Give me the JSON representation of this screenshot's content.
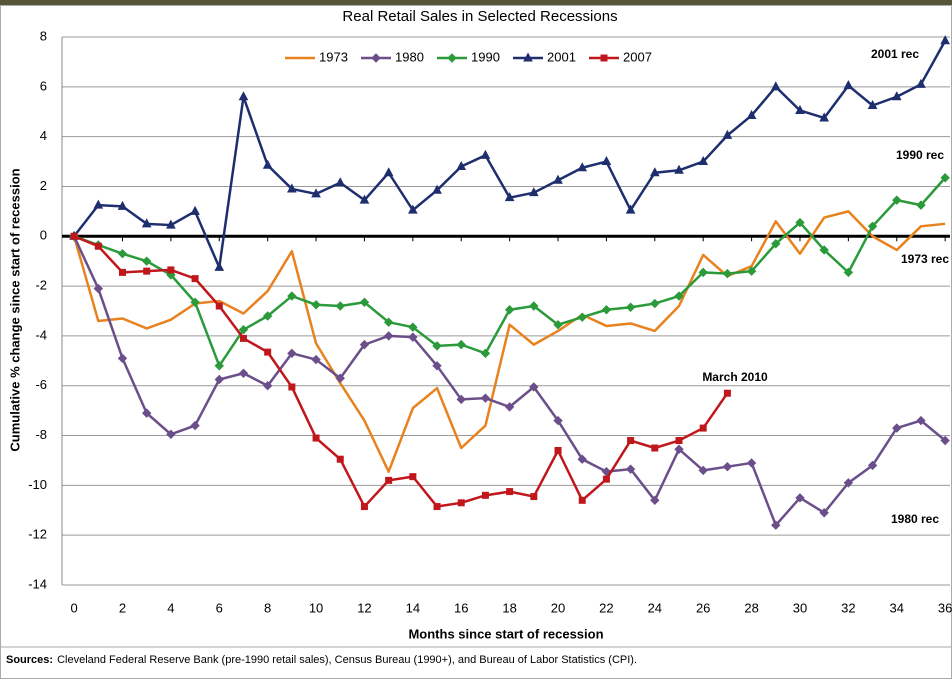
{
  "chart_data": {
    "type": "line",
    "title": "Real Retail Sales in Selected Recessions",
    "x_label": "Months since start of recession",
    "y_label": "Cumulative % change since start of recession",
    "x": [
      0,
      1,
      2,
      3,
      4,
      5,
      6,
      7,
      8,
      9,
      10,
      11,
      12,
      13,
      14,
      15,
      16,
      17,
      18,
      19,
      20,
      21,
      22,
      23,
      24,
      25,
      26,
      27,
      28,
      29,
      30,
      31,
      32,
      33,
      34,
      35,
      36
    ],
    "xlim": [
      -0.5,
      36.2
    ],
    "xticks": [
      0,
      2,
      4,
      6,
      8,
      10,
      12,
      14,
      16,
      18,
      20,
      22,
      24,
      26,
      28,
      30,
      32,
      34,
      36
    ],
    "ylim": [
      -14,
      8
    ],
    "yticks": [
      -14,
      -12,
      -10,
      -8,
      -6,
      -4,
      -2,
      0,
      2,
      4,
      6,
      8
    ],
    "grid": true,
    "legend": "top",
    "series": [
      {
        "name": "1973",
        "color": "#e8821e",
        "marker": "none",
        "values": [
          0,
          -3.4,
          -3.3,
          -3.7,
          -3.35,
          -2.7,
          -2.6,
          -3.1,
          -2.2,
          -0.6,
          -4.3,
          -5.9,
          -7.4,
          -9.45,
          -6.9,
          -6.1,
          -8.5,
          -7.6,
          -3.55,
          -4.35,
          -3.8,
          -3.15,
          -3.6,
          -3.5,
          -3.8,
          -2.8,
          -0.75,
          -1.6,
          -1.2,
          0.6,
          -0.7,
          0.75,
          1.0,
          0.0,
          -0.55,
          0.4,
          0.5
        ]
      },
      {
        "name": "1980",
        "color": "#6b4f8a",
        "marker": "diamond",
        "values": [
          0,
          -2.1,
          -4.9,
          -7.1,
          -7.95,
          -7.6,
          -5.75,
          -5.5,
          -6.0,
          -4.7,
          -4.95,
          -5.7,
          -4.35,
          -4.0,
          -4.05,
          -5.2,
          -6.55,
          -6.5,
          -6.85,
          -6.05,
          -7.4,
          -8.95,
          -9.45,
          -9.35,
          -10.6,
          -8.55,
          -9.4,
          -9.25,
          -9.1,
          -11.6,
          -10.5,
          -11.1,
          -9.9,
          -9.2,
          -7.7,
          -7.4,
          -8.2
        ]
      },
      {
        "name": "1990",
        "color": "#2a9a3a",
        "marker": "diamond",
        "values": [
          0,
          -0.35,
          -0.7,
          -1.0,
          -1.55,
          -2.65,
          -5.2,
          -3.75,
          -3.2,
          -2.4,
          -2.75,
          -2.8,
          -2.65,
          -3.45,
          -3.65,
          -4.4,
          -4.35,
          -4.7,
          -2.95,
          -2.8,
          -3.55,
          -3.25,
          -2.95,
          -2.85,
          -2.7,
          -2.4,
          -1.45,
          -1.5,
          -1.4,
          -0.3,
          0.55,
          -0.55,
          -1.45,
          0.4,
          1.45,
          1.25,
          2.35
        ]
      },
      {
        "name": "2001",
        "color": "#1f2f6e",
        "marker": "triangle",
        "values": [
          0,
          1.25,
          1.2,
          0.5,
          0.45,
          1.0,
          -1.25,
          5.6,
          2.85,
          1.9,
          1.7,
          2.15,
          1.45,
          2.55,
          1.05,
          1.85,
          2.8,
          3.25,
          1.55,
          1.75,
          2.25,
          2.75,
          3.0,
          1.05,
          2.55,
          2.65,
          3.0,
          4.05,
          4.85,
          6.0,
          5.05,
          4.75,
          6.05,
          5.25,
          5.6,
          6.1,
          7.85
        ]
      },
      {
        "name": "2007",
        "color": "#c0171c",
        "marker": "square",
        "values": [
          0,
          -0.4,
          -1.45,
          -1.4,
          -1.35,
          -1.7,
          -2.8,
          -4.1,
          -4.65,
          -6.05,
          -8.1,
          -8.95,
          -10.85,
          -9.8,
          -9.65,
          -10.85,
          -10.7,
          -10.4,
          -10.25,
          -10.45,
          -8.6,
          -10.6,
          -9.75,
          -8.2,
          -8.5,
          -8.2,
          -7.7,
          -6.3,
          null,
          null,
          null,
          null,
          null,
          null,
          null,
          null,
          null
        ]
      }
    ],
    "annotations": [
      "2001 rec",
      "1990 rec",
      "1973 rec",
      "1980 rec",
      "March 2010"
    ],
    "sources_label": "Sources:",
    "sources_text": "Cleveland Federal Reserve Bank (pre-1990 retail sales), Census Bureau (1990+), and Bureau of Labor Statistics (CPI)."
  }
}
